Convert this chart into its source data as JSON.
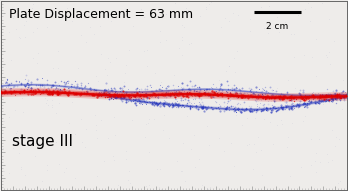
{
  "title": "Plate Displacement = 63 mm",
  "stage_label": "stage III",
  "scalebar_label": "2 cm",
  "bg_color": "#eeecea",
  "border_color": "#666666",
  "title_fontsize": 9,
  "stage_fontsize": 11,
  "scalebar_fontsize": 6.5,
  "fig_width": 3.48,
  "fig_height": 1.91,
  "dpi": 100,
  "red_line_y": 0.5,
  "noise_color": "#aaaacc",
  "blue_color": "#2233bb",
  "red_color": "#dd0000"
}
